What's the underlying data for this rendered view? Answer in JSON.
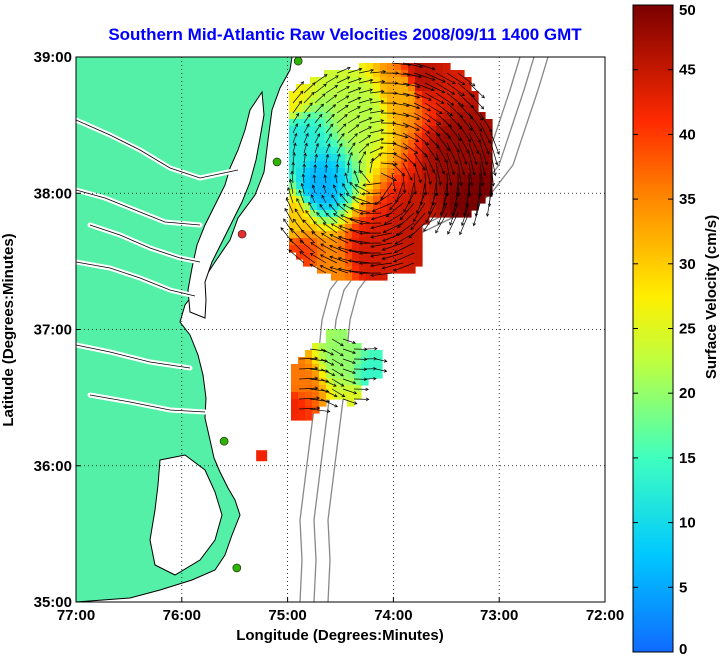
{
  "chart_data": {
    "type": "heatmap",
    "title": "Southern Mid-Atlantic Raw Velocities 2008/09/11 1400 GMT",
    "xlabel": "Longitude (Degrees:Minutes)",
    "ylabel": "Latitude (Degrees:Minutes)",
    "xlim": [
      -77,
      -72
    ],
    "ylim": [
      35,
      39
    ],
    "x_ticks": [
      {
        "value": -77,
        "label": "77:00"
      },
      {
        "value": -76,
        "label": "76:00"
      },
      {
        "value": -75,
        "label": "75:00"
      },
      {
        "value": -74,
        "label": "74:00"
      },
      {
        "value": -73,
        "label": "73:00"
      },
      {
        "value": -72,
        "label": "72:00"
      }
    ],
    "y_ticks": [
      {
        "value": 35,
        "label": "35:00"
      },
      {
        "value": 36,
        "label": "36:00"
      },
      {
        "value": 37,
        "label": "37:00"
      },
      {
        "value": 38,
        "label": "38:00"
      },
      {
        "value": 39,
        "label": "39:00"
      }
    ],
    "grid": true,
    "colorbar": {
      "label": "Surface Velocity (cm/s)",
      "min": 0,
      "max": 50,
      "ticks": [
        {
          "value": 0,
          "label": "0"
        },
        {
          "value": 5,
          "label": "5"
        },
        {
          "value": 10,
          "label": "10"
        },
        {
          "value": 15,
          "label": "15"
        },
        {
          "value": 20,
          "label": "20"
        },
        {
          "value": 25,
          "label": "25"
        },
        {
          "value": 30,
          "label": "30"
        },
        {
          "value": 35,
          "label": "35"
        },
        {
          "value": 40,
          "label": "40"
        },
        {
          "value": 45,
          "label": "45"
        },
        {
          "value": 50,
          "label": "50"
        }
      ],
      "colormap": "jet"
    },
    "velocity_field": {
      "region_north": {
        "lon_range": [
          -75.05,
          -73.05
        ],
        "lat_range": [
          37.25,
          38.95
        ],
        "centers": [
          {
            "lon": -74.7,
            "lat": 38.05,
            "speed": 6
          },
          {
            "lon": -74.9,
            "lat": 38.4,
            "speed": 12
          },
          {
            "lon": -74.3,
            "lat": 38.6,
            "speed": 22
          },
          {
            "lon": -73.9,
            "lat": 38.75,
            "speed": 32
          },
          {
            "lon": -73.75,
            "lat": 38.85,
            "speed": 46
          },
          {
            "lon": -73.4,
            "lat": 38.3,
            "speed": 48
          },
          {
            "lon": -73.25,
            "lat": 37.95,
            "speed": 50
          },
          {
            "lon": -73.8,
            "lat": 37.75,
            "speed": 45
          },
          {
            "lon": -74.2,
            "lat": 37.55,
            "speed": 44
          },
          {
            "lon": -74.6,
            "lat": 37.4,
            "speed": 35
          },
          {
            "lon": -74.9,
            "lat": 37.55,
            "speed": 40
          },
          {
            "lon": -74.95,
            "lat": 37.8,
            "speed": 30
          },
          {
            "lon": -75.0,
            "lat": 38.7,
            "speed": 27
          }
        ]
      },
      "region_south": {
        "lon_range": [
          -75.1,
          -73.9
        ],
        "lat_range": [
          36.35,
          37.0
        ],
        "centers": [
          {
            "lon": -74.5,
            "lat": 36.8,
            "speed": 20
          },
          {
            "lon": -74.2,
            "lat": 36.65,
            "speed": 14
          },
          {
            "lon": -74.9,
            "lat": 36.6,
            "speed": 36
          },
          {
            "lon": -74.95,
            "lat": 36.45,
            "speed": 42
          },
          {
            "lon": -74.35,
            "lat": 36.45,
            "speed": 25
          }
        ]
      },
      "isolated_cells": [
        {
          "lon": -75.25,
          "lat": 36.07,
          "speed": 42
        }
      ]
    },
    "stations": [
      {
        "lon": -74.9,
        "lat": 38.97,
        "color": "#2db300"
      },
      {
        "lon": -75.1,
        "lat": 38.23,
        "color": "#2db300"
      },
      {
        "lon": -75.43,
        "lat": 37.7,
        "color": "#e53030"
      },
      {
        "lon": -75.6,
        "lat": 36.18,
        "color": "#2db300"
      },
      {
        "lon": -75.48,
        "lat": 35.25,
        "color": "#2db300"
      }
    ]
  },
  "colors": {
    "land": "#55f0a8",
    "coast": "#000000",
    "bathymetry": "#888888",
    "grid": "#000000",
    "title": "#0000ff"
  }
}
